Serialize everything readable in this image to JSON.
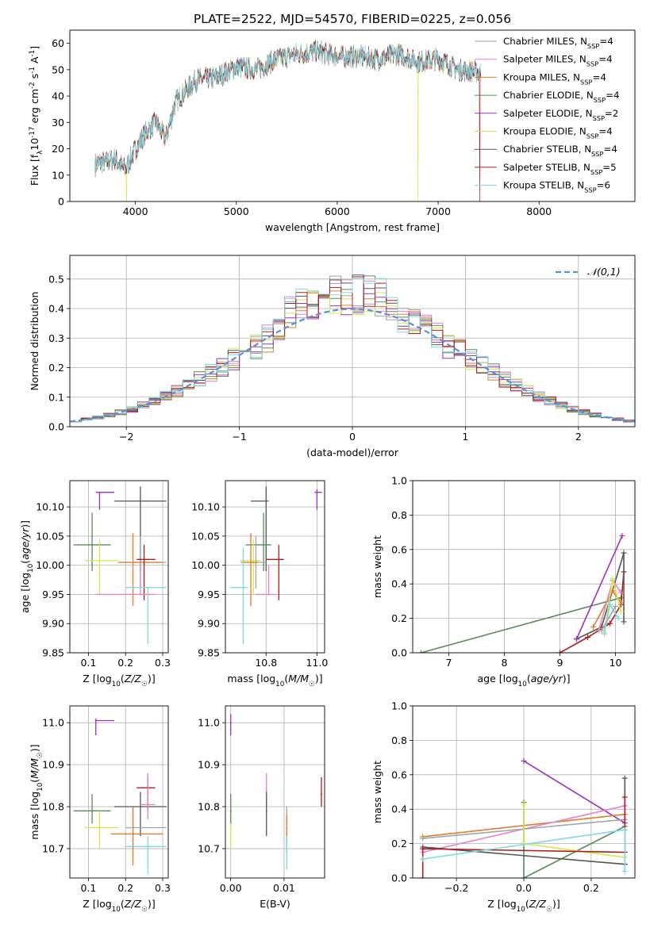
{
  "figure_title": "PLATE=2522, MJD=54570, FIBERID=0225, z=0.056",
  "colors": {
    "Chabrier MILES": "#9aa7ac",
    "Salpeter MILES": "#e882c8",
    "Kroupa MILES": "#e07b2c",
    "Chabrier ELODIE": "#5a8a5a",
    "Salpeter ELODIE": "#9b30c0",
    "Kroupa ELODIE": "#d4e84a",
    "Chabrier STELIB": "#555555",
    "Salpeter STELIB": "#b01c1c",
    "Kroupa STELIB": "#7fd8e0",
    "normal": "#5b8fd8"
  },
  "chart_data": [
    {
      "id": "spectrum",
      "type": "line",
      "xlabel": "wavelength [Angstrom, rest frame]",
      "ylabel": "Flux [f$_\\lambda$10$^{-17}$ erg cm$^{-2}$ s$^{-1}$ A$^{-1}$]",
      "xlim": [
        3350,
        8950
      ],
      "ylim": [
        0,
        65
      ],
      "x_ticks": [
        4000,
        5000,
        6000,
        7000,
        8000
      ],
      "y_ticks": [
        0,
        10,
        20,
        30,
        40,
        50,
        60
      ],
      "grid": false,
      "legend_position": "top-right",
      "continuum_x": [
        3600,
        3800,
        3900,
        4000,
        4100,
        4200,
        4300,
        4400,
        4500,
        4600,
        4800,
        5000,
        5200,
        5400,
        5600,
        5800,
        6000,
        6200,
        6400,
        6600,
        6800,
        7000,
        7200,
        7400
      ],
      "continuum_y": [
        14,
        16,
        12,
        20,
        26,
        30,
        24,
        38,
        42,
        46,
        47,
        51,
        50,
        54,
        56,
        57,
        55,
        55,
        54,
        56,
        53,
        54,
        50,
        49
      ],
      "legend": [
        {
          "label": "Chabrier MILES, N$_{SSP}$=4",
          "color_key": "Chabrier MILES"
        },
        {
          "label": "Salpeter MILES, N$_{SSP}$=4",
          "color_key": "Salpeter MILES"
        },
        {
          "label": "Kroupa MILES, N$_{SSP}$=4",
          "color_key": "Kroupa MILES"
        },
        {
          "label": "Chabrier ELODIE, N$_{SSP}$=4",
          "color_key": "Chabrier ELODIE"
        },
        {
          "label": "Salpeter ELODIE, N$_{SSP}$=2",
          "color_key": "Salpeter ELODIE"
        },
        {
          "label": "Kroupa ELODIE, N$_{SSP}$=4",
          "color_key": "Kroupa ELODIE"
        },
        {
          "label": "Chabrier STELIB, N$_{SSP}$=4",
          "color_key": "Chabrier STELIB"
        },
        {
          "label": "Salpeter STELIB, N$_{SSP}$=5",
          "color_key": "Salpeter STELIB"
        },
        {
          "label": "Kroupa STELIB, N$_{SSP}$=6",
          "color_key": "Kroupa STELIB"
        }
      ]
    },
    {
      "id": "residuals",
      "type": "line",
      "xlabel": "(data-model)/error",
      "ylabel": "Normed distribution",
      "xlim": [
        -2.5,
        2.5
      ],
      "ylim": [
        0,
        0.58
      ],
      "x_ticks": [
        -2,
        -1,
        0,
        1,
        2
      ],
      "y_ticks": [
        0.0,
        0.1,
        0.2,
        0.3,
        0.4,
        0.5
      ],
      "grid": true,
      "legend_position": "top-right",
      "normal_label": "$\\mathcal{N}(0,1)$"
    },
    {
      "id": "age_vs_Z",
      "type": "scatter",
      "xlabel": "Z [log$_{10}$($Z/Z_\\odot$)]",
      "ylabel": "age  [log$_{10}$($age/yr$)]",
      "xlim": [
        0.05,
        0.315
      ],
      "ylim": [
        9.85,
        10.145
      ],
      "x_ticks": [
        0.1,
        0.2,
        0.3
      ],
      "y_ticks": [
        9.85,
        9.9,
        9.95,
        10.0,
        10.05,
        10.1
      ],
      "grid": true,
      "points": [
        {
          "s": "Salpeter ELODIE",
          "x": 0.13,
          "y": 10.125,
          "xe": [
            0.12,
            0.17
          ],
          "ye": [
            10.095,
            10.125
          ]
        },
        {
          "s": "Chabrier STELIB",
          "x": 0.24,
          "y": 10.11,
          "xe": [
            0.17,
            0.31
          ],
          "ye": [
            9.99,
            10.135
          ]
        },
        {
          "s": "Chabrier ELODIE",
          "x": 0.11,
          "y": 10.035,
          "xe": [
            0.06,
            0.16
          ],
          "ye": [
            9.99,
            10.09
          ]
        },
        {
          "s": "Kroupa ELODIE",
          "x": 0.13,
          "y": 10.008,
          "xe": [
            0.09,
            0.18
          ],
          "ye": [
            9.95,
            10.045
          ]
        },
        {
          "s": "Chabrier MILES",
          "x": 0.24,
          "y": 10.005,
          "xe": [
            0.18,
            0.31
          ],
          "ye": [
            9.96,
            10.05
          ]
        },
        {
          "s": "Kroupa MILES",
          "x": 0.22,
          "y": 10.005,
          "xe": [
            0.18,
            0.3
          ],
          "ye": [
            9.93,
            10.055
          ]
        },
        {
          "s": "Salpeter STELIB",
          "x": 0.25,
          "y": 10.01,
          "xe": [
            0.23,
            0.28
          ],
          "ye": [
            9.94,
            10.035
          ]
        },
        {
          "s": "Salpeter MILES",
          "x": 0.24,
          "y": 9.95,
          "xe": [
            0.12,
            0.28
          ],
          "ye": [
            9.95,
            10.0
          ]
        },
        {
          "s": "Kroupa STELIB",
          "x": 0.26,
          "y": 9.962,
          "xe": [
            0.2,
            0.31
          ],
          "ye": [
            9.865,
            9.962
          ]
        }
      ]
    },
    {
      "id": "age_vs_mass",
      "type": "scatter",
      "xlabel": "mass [log$_{10}$($M/M_\\odot$)]",
      "ylabel": "",
      "xlim": [
        10.64,
        11.03
      ],
      "ylim": [
        9.85,
        10.145
      ],
      "x_ticks": [
        10.8,
        11.0
      ],
      "y_ticks": [
        9.85,
        9.9,
        9.95,
        10.0,
        10.05,
        10.1
      ],
      "grid": true,
      "points": [
        {
          "s": "Salpeter ELODIE",
          "x": 11.0,
          "y": 10.125,
          "xe": [
            10.99,
            11.02
          ],
          "ye": [
            10.095,
            10.13
          ]
        },
        {
          "s": "Chabrier STELIB",
          "x": 10.8,
          "y": 10.11,
          "xe": [
            10.74,
            10.81
          ],
          "ye": [
            9.99,
            10.135
          ]
        },
        {
          "s": "Chabrier ELODIE",
          "x": 10.79,
          "y": 10.035,
          "xe": [
            10.72,
            10.82
          ],
          "ye": [
            9.99,
            10.09
          ]
        },
        {
          "s": "Kroupa ELODIE",
          "x": 10.75,
          "y": 10.008,
          "xe": [
            10.7,
            10.78
          ],
          "ye": [
            9.95,
            10.045
          ]
        },
        {
          "s": "Chabrier MILES",
          "x": 10.76,
          "y": 10.005,
          "xe": [
            10.71,
            10.8
          ],
          "ye": [
            9.96,
            10.05
          ]
        },
        {
          "s": "Kroupa MILES",
          "x": 10.74,
          "y": 10.005,
          "xe": [
            10.7,
            10.77
          ],
          "ye": [
            9.93,
            10.055
          ]
        },
        {
          "s": "Salpeter STELIB",
          "x": 10.85,
          "y": 10.01,
          "xe": [
            10.8,
            10.87
          ],
          "ye": [
            9.94,
            10.035
          ]
        },
        {
          "s": "Salpeter MILES",
          "x": 10.81,
          "y": 9.95,
          "xe": [
            10.76,
            10.84
          ],
          "ye": [
            9.95,
            10.0
          ]
        },
        {
          "s": "Kroupa STELIB",
          "x": 10.71,
          "y": 9.962,
          "xe": [
            10.66,
            10.73
          ],
          "ye": [
            9.865,
            10.03
          ]
        }
      ]
    },
    {
      "id": "massweight_vs_age",
      "type": "line",
      "xlabel": "age  [log$_{10}$($age/yr$)]",
      "ylabel": "mass weight",
      "xlim": [
        6.35,
        10.35
      ],
      "ylim": [
        0,
        1.0
      ],
      "x_ticks": [
        7,
        8,
        9,
        10
      ],
      "y_ticks": [
        0.0,
        0.2,
        0.4,
        0.6,
        0.8,
        1.0
      ],
      "grid": true,
      "series": [
        {
          "s": "Chabrier ELODIE",
          "x": [
            6.5,
            10.1
          ],
          "y": [
            0.0,
            0.32
          ]
        },
        {
          "s": "Salpeter STELIB",
          "x": [
            9.0,
            9.5,
            9.9,
            10.1,
            10.15
          ],
          "y": [
            0.0,
            0.09,
            0.17,
            0.28,
            0.47
          ]
        },
        {
          "s": "Chabrier STELIB",
          "x": [
            9.3,
            9.75,
            10.15,
            10.15
          ],
          "y": [
            0.08,
            0.15,
            0.58,
            0.18
          ]
        },
        {
          "s": "Salpeter ELODIE",
          "x": [
            9.3,
            10.12
          ],
          "y": [
            0.08,
            0.68
          ]
        },
        {
          "s": "Kroupa MILES",
          "x": [
            9.6,
            9.95,
            10.1
          ],
          "y": [
            0.15,
            0.36,
            0.29
          ]
        },
        {
          "s": "Salpeter MILES",
          "x": [
            9.7,
            9.95,
            10.1
          ],
          "y": [
            0.13,
            0.42,
            0.35
          ]
        },
        {
          "s": "Kroupa ELODIE",
          "x": [
            9.8,
            9.95,
            10.1
          ],
          "y": [
            0.12,
            0.43,
            0.24
          ]
        },
        {
          "s": "Kroupa STELIB",
          "x": [
            9.8,
            9.9,
            10.05
          ],
          "y": [
            0.11,
            0.28,
            0.2
          ]
        },
        {
          "s": "Chabrier MILES",
          "x": [
            9.75,
            10.0
          ],
          "y": [
            0.13,
            0.27
          ]
        }
      ]
    },
    {
      "id": "mass_vs_Z",
      "type": "scatter",
      "xlabel": "Z [log$_{10}$($Z/Z_\\odot$)]",
      "ylabel": "mass [log$_{10}$($M/M_\\odot$)]",
      "xlim": [
        0.05,
        0.315
      ],
      "ylim": [
        10.63,
        11.04
      ],
      "x_ticks": [
        0.1,
        0.2,
        0.3
      ],
      "y_ticks": [
        10.7,
        10.8,
        10.9,
        11.0
      ],
      "grid": true,
      "points": [
        {
          "s": "Salpeter ELODIE",
          "x": 0.12,
          "y": 11.005,
          "xe": [
            0.12,
            0.17
          ],
          "ye": [
            10.97,
            11.01
          ]
        },
        {
          "s": "Salpeter STELIB",
          "x": 0.26,
          "y": 10.845,
          "xe": [
            0.23,
            0.28
          ],
          "ye": [
            10.79,
            10.87
          ]
        },
        {
          "s": "Chabrier STELIB",
          "x": 0.24,
          "y": 10.8,
          "xe": [
            0.17,
            0.31
          ],
          "ye": [
            10.73,
            10.835
          ]
        },
        {
          "s": "Chabrier ELODIE",
          "x": 0.11,
          "y": 10.79,
          "xe": [
            0.06,
            0.16
          ],
          "ye": [
            10.76,
            10.83
          ]
        },
        {
          "s": "Salpeter MILES",
          "x": 0.26,
          "y": 10.805,
          "xe": [
            0.24,
            0.28
          ],
          "ye": [
            10.77,
            10.88
          ]
        },
        {
          "s": "Kroupa ELODIE",
          "x": 0.13,
          "y": 10.75,
          "xe": [
            0.09,
            0.18
          ],
          "ye": [
            10.7,
            10.79
          ]
        },
        {
          "s": "Chabrier MILES",
          "x": 0.22,
          "y": 10.75,
          "xe": [
            0.2,
            0.31
          ],
          "ye": [
            10.68,
            10.8
          ]
        },
        {
          "s": "Kroupa MILES",
          "x": 0.22,
          "y": 10.735,
          "xe": [
            0.16,
            0.3
          ],
          "ye": [
            10.66,
            10.8
          ]
        },
        {
          "s": "Kroupa STELIB",
          "x": 0.26,
          "y": 10.705,
          "xe": [
            0.2,
            0.31
          ],
          "ye": [
            10.64,
            10.73
          ]
        }
      ]
    },
    {
      "id": "mass_vs_ebv",
      "type": "scatter",
      "xlabel": "E(B-V)",
      "ylabel": "",
      "xlim": [
        -0.001,
        0.0176
      ],
      "ylim": [
        10.63,
        11.04
      ],
      "x_ticks": [
        0.0,
        0.01
      ],
      "y_ticks": [
        10.7,
        10.8,
        10.9,
        11.0
      ],
      "grid": true,
      "points": [
        {
          "s": "Salpeter ELODIE",
          "x": 0.0,
          "y": 11.0,
          "ye": [
            10.97,
            11.02
          ]
        },
        {
          "s": "Kroupa ELODIE",
          "x": 0.0,
          "y": 10.75,
          "ye": [
            10.7,
            10.79
          ]
        },
        {
          "s": "Chabrier ELODIE",
          "x": 0.0,
          "y": 10.79,
          "ye": [
            10.76,
            10.83
          ]
        },
        {
          "s": "Salpeter MILES",
          "x": 0.0067,
          "y": 10.84,
          "ye": [
            10.8,
            10.88
          ]
        },
        {
          "s": "Chabrier STELIB",
          "x": 0.0067,
          "y": 10.79,
          "ye": [
            10.73,
            10.835
          ]
        },
        {
          "s": "Chabrier MILES",
          "x": 0.0105,
          "y": 10.75,
          "ye": [
            10.7,
            10.8
          ]
        },
        {
          "s": "Kroupa MILES",
          "x": 0.0105,
          "y": 10.735,
          "ye": [
            10.69,
            10.78
          ]
        },
        {
          "s": "Kroupa STELIB",
          "x": 0.0105,
          "y": 10.7,
          "ye": [
            10.65,
            10.73
          ]
        },
        {
          "s": "Salpeter STELIB",
          "x": 0.017,
          "y": 10.83,
          "ye": [
            10.8,
            10.87
          ]
        }
      ]
    },
    {
      "id": "massweight_vs_Z",
      "type": "line",
      "xlabel": "Z [log$_{10}$($Z/Z_\\odot$)]",
      "ylabel": "mass weight",
      "xlim": [
        -0.33,
        0.33
      ],
      "ylim": [
        0,
        1.0
      ],
      "x_ticks": [
        -0.2,
        0.0,
        0.2
      ],
      "y_ticks": [
        0.0,
        0.2,
        0.4,
        0.6,
        0.8,
        1.0
      ],
      "grid": true,
      "series": [
        {
          "s": "Salpeter ELODIE",
          "x": [
            0.0,
            0.3
          ],
          "y": [
            0.68,
            0.32
          ]
        },
        {
          "s": "Kroupa MILES",
          "x": [
            -0.3,
            0.3
          ],
          "y": [
            0.24,
            0.37
          ]
        },
        {
          "s": "Salpeter MILES",
          "x": [
            -0.3,
            0.3
          ],
          "y": [
            0.15,
            0.42
          ]
        },
        {
          "s": "Chabrier MILES",
          "x": [
            -0.3,
            0.3
          ],
          "y": [
            0.23,
            0.34
          ]
        },
        {
          "s": "Chabrier ELODIE",
          "x": [
            0.0,
            0.0,
            0.3
          ],
          "y": [
            0.44,
            0.0,
            0.3
          ]
        },
        {
          "s": "Kroupa ELODIE",
          "x": [
            0.0,
            0.0,
            0.3
          ],
          "y": [
            0.43,
            0.2,
            0.12
          ]
        },
        {
          "s": "Chabrier STELIB",
          "x": [
            -0.3,
            0.3,
            0.3
          ],
          "y": [
            0.18,
            0.08,
            0.58
          ]
        },
        {
          "s": "Salpeter STELIB",
          "x": [
            -0.3,
            -0.3,
            0.3,
            0.3
          ],
          "y": [
            0.0,
            0.17,
            0.15,
            0.47
          ]
        },
        {
          "s": "Kroupa STELIB",
          "x": [
            -0.3,
            0.3,
            0.3
          ],
          "y": [
            0.11,
            0.28,
            0.04
          ]
        }
      ]
    }
  ]
}
